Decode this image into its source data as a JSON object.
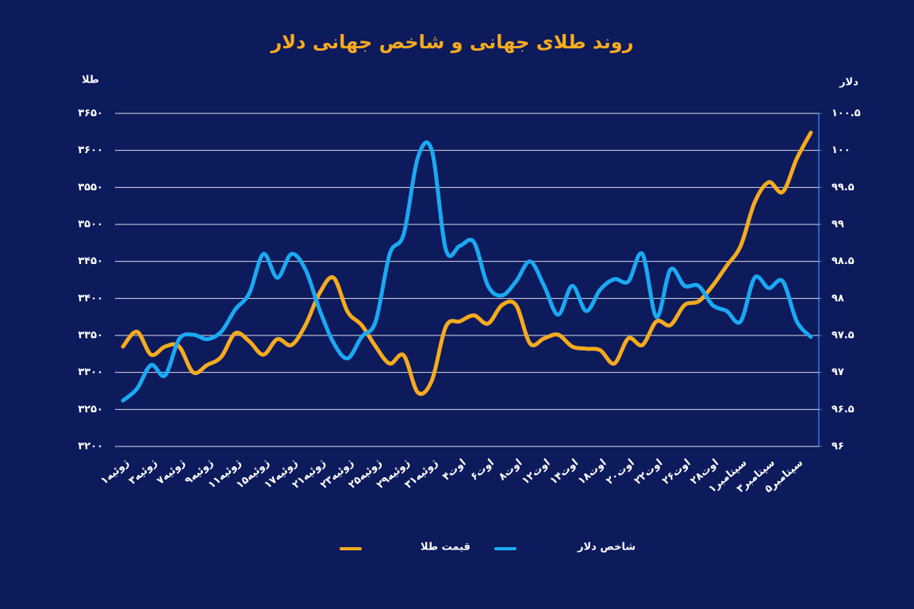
{
  "chart_data": {
    "type": "line",
    "title": "روند طلای جهانی و شاخص جهانی دلار",
    "ylabel": "طلا",
    "y2label": "دلار",
    "legend": "bottom",
    "grid": true,
    "categories": [
      "۱ژوئیه",
      null,
      "۳ژوئیه",
      null,
      "۷ژوئیه",
      null,
      "۹ژوئیه",
      null,
      "۱۱ژوئیه",
      null,
      "۱۵ژوئیه",
      null,
      "۱۷ژوئیه",
      null,
      "۲۱ژوئیه",
      null,
      "۲۳ژوئیه",
      null,
      "۲۵ژوئیه",
      null,
      "۲۹ژوئیه",
      null,
      "۳۱ژوئیه",
      null,
      "۴اوت",
      null,
      "۶اوت",
      null,
      "۸اوت",
      null,
      "۱۲اوت",
      null,
      "۱۴اوت",
      null,
      "۱۸اوت",
      null,
      "۲۰اوت",
      null,
      "۲۲اوت",
      null,
      "۲۶اوت",
      null,
      "۲۸اوت",
      null,
      "۱سپتامبر",
      null,
      "۳سپتامبر",
      null,
      "۵سپتامبر",
      null
    ],
    "ylim": [
      3200,
      3650
    ],
    "yticks": [
      {
        "value": 3200,
        "label": "۳۲۰۰"
      },
      {
        "value": 3250,
        "label": "۳۲۵۰"
      },
      {
        "value": 3300,
        "label": "۳۳۰۰"
      },
      {
        "value": 3350,
        "label": "۳۳۵۰"
      },
      {
        "value": 3400,
        "label": "۳۴۰۰"
      },
      {
        "value": 3450,
        "label": "۳۴۵۰"
      },
      {
        "value": 3500,
        "label": "۳۵۰۰"
      },
      {
        "value": 3550,
        "label": "۳۵۵۰"
      },
      {
        "value": 3600,
        "label": "۳۶۰۰"
      },
      {
        "value": 3650,
        "label": "۳۶۵۰"
      }
    ],
    "y2lim": [
      96,
      100.5
    ],
    "y2ticks": [
      {
        "value": 96,
        "label": "۹۶"
      },
      {
        "value": 96.5,
        "label": "۹۶.۵"
      },
      {
        "value": 97,
        "label": "۹۷"
      },
      {
        "value": 97.5,
        "label": "۹۷.۵"
      },
      {
        "value": 98,
        "label": "۹۸"
      },
      {
        "value": 98.5,
        "label": "۹۸.۵"
      },
      {
        "value": 99,
        "label": "۹۹"
      },
      {
        "value": 99.5,
        "label": "۹۹.۵"
      },
      {
        "value": 100,
        "label": "۱۰۰"
      },
      {
        "value": 100.5,
        "label": "۱۰۰.۵"
      }
    ],
    "series": [
      {
        "name": "قیمت طلا",
        "color": "#f6ab1e",
        "values": [
          3335,
          3355,
          3324,
          3335,
          3335,
          3300,
          3310,
          3321,
          3353,
          3342,
          3324,
          3345,
          3337,
          3364,
          3407,
          3428,
          3382,
          3364,
          3335,
          3312,
          3323,
          3273,
          3289,
          3362,
          3369,
          3377,
          3366,
          3391,
          3391,
          3339,
          3346,
          3351,
          3335,
          3332,
          3330,
          3312,
          3346,
          3337,
          3369,
          3364,
          3391,
          3396,
          3417,
          3444,
          3471,
          3530,
          3557,
          3544,
          3589,
          3624
        ]
      },
      {
        "name": "شاخص دلار",
        "color": "#1aa9f2",
        "axis": "y2",
        "values": [
          96.62,
          96.78,
          97.1,
          96.96,
          97.45,
          97.51,
          97.45,
          97.55,
          97.85,
          98.07,
          98.6,
          98.28,
          98.6,
          98.39,
          97.85,
          97.4,
          97.19,
          97.48,
          97.69,
          98.6,
          98.87,
          99.9,
          100.0,
          98.66,
          98.71,
          98.76,
          98.17,
          98.04,
          98.23,
          98.5,
          98.17,
          97.78,
          98.17,
          97.83,
          98.12,
          98.26,
          98.23,
          98.6,
          97.75,
          98.39,
          98.17,
          98.17,
          97.91,
          97.83,
          97.69,
          98.28,
          98.14,
          98.23,
          97.69,
          97.48
        ]
      }
    ]
  }
}
